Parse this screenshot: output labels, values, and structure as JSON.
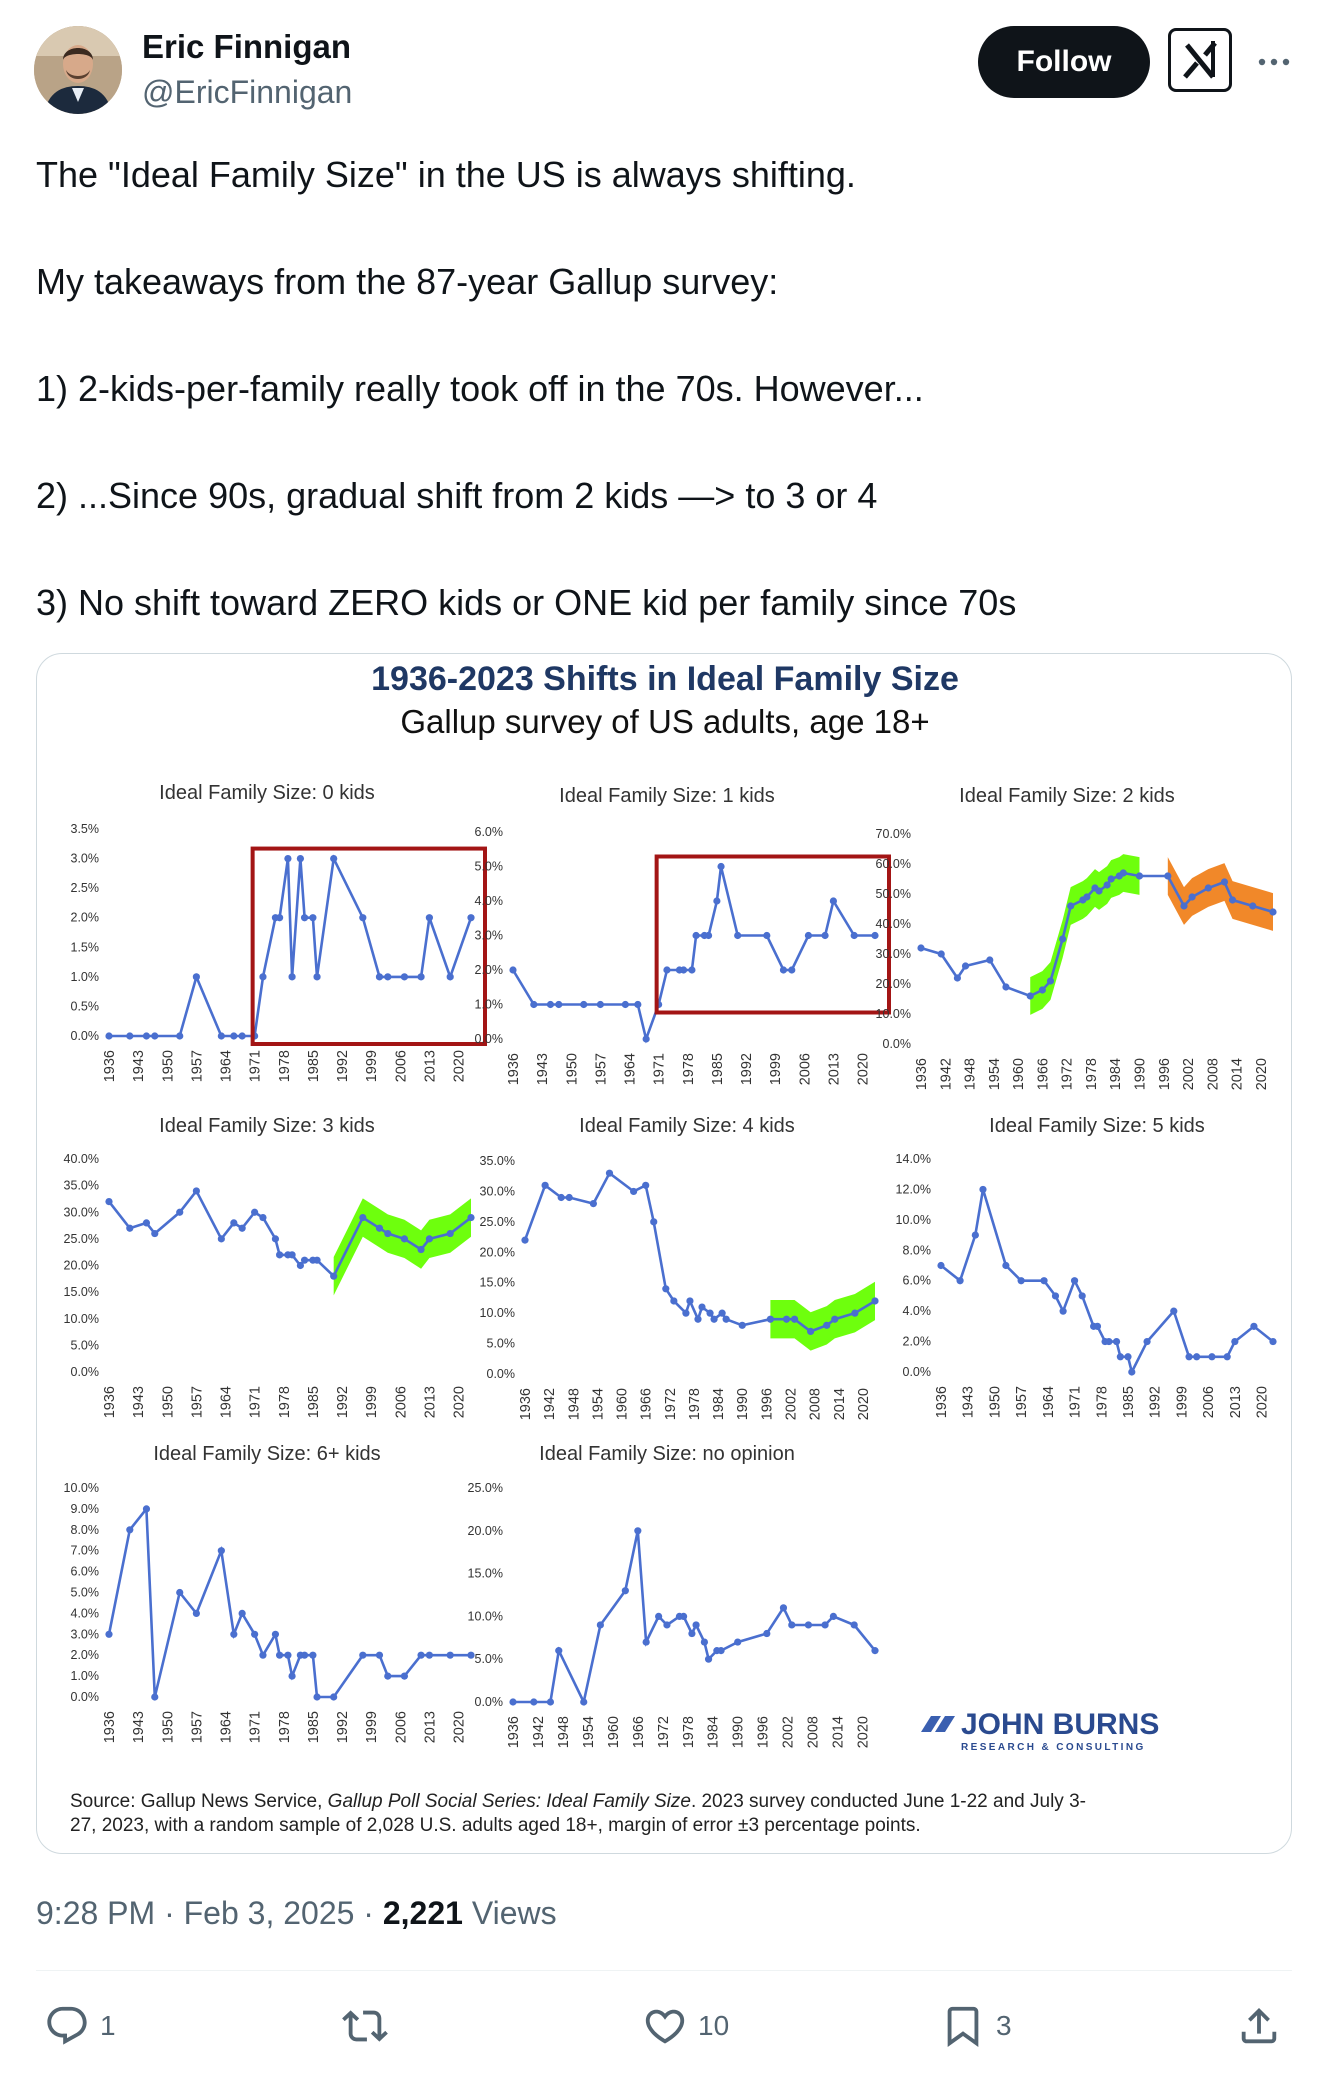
{
  "author": {
    "name": "Eric Finnigan",
    "handle": "@EricFinnigan"
  },
  "header": {
    "follow_label": "Follow",
    "grok_icon": "grok-icon",
    "more_icon": "more-icon"
  },
  "tweet": {
    "lines": [
      "The \"Ideal Family Size\" in the US is always shifting.",
      "My takeaways from the 87-year Gallup survey:",
      "1) 2-kids-per-family really took off in the 70s. However...",
      "2) ...Since 90s, gradual shift from 2 kids —> to 3 or 4",
      "3) No shift toward ZERO kids or ONE kid per family since 70s"
    ]
  },
  "media": {
    "title": "1936-2023 Shifts in Ideal Family Size",
    "subtitle": "Gallup survey of US adults, age 18+",
    "logo_text": "JOHN BURNS",
    "logo_subtext": "RESEARCH & CONSULTING",
    "source_lines": [
      [
        "Source: Gallup News Service, ",
        "Gallup Poll Social Series: Ideal Family Size",
        ". 2023 survey conducted June 1-22 and July 3-"
      ],
      [
        "27, 2023, with a random sample of 2,028 U.S. adults aged 18+, margin of error ±3 percentage points.",
        "",
        ""
      ]
    ]
  },
  "footer": {
    "time": "9:28 PM",
    "date": "Feb 3, 2025",
    "views_count": "2,221",
    "views_label": "Views"
  },
  "actions": {
    "reply_count": "1",
    "retweet_count": "",
    "like_count": "10",
    "bookmark_count": "3"
  },
  "colors": {
    "line": "#4a6fcf",
    "marker": "#4a6fcf",
    "highlight_box": "#a31515",
    "green": "#66ff00",
    "orange": "#f0821e",
    "title": "#1f3864"
  },
  "chart_data": [
    {
      "type": "line",
      "title": "Ideal Family Size: 0 kids",
      "ylim": [
        0,
        3.5
      ],
      "yticks": [
        "0.0%",
        "0.5%",
        "1.0%",
        "1.5%",
        "2.0%",
        "2.5%",
        "3.0%",
        "3.5%"
      ],
      "xticks": [
        "1936",
        "1943",
        "1950",
        "1957",
        "1964",
        "1971",
        "1978",
        "1985",
        "1992",
        "1999",
        "2006",
        "2013",
        "2020"
      ],
      "x": [
        1936,
        1941,
        1945,
        1947,
        1953,
        1957,
        1963,
        1966,
        1968,
        1971,
        1973,
        1976,
        1977,
        1979,
        1980,
        1982,
        1983,
        1985,
        1986,
        1990,
        1997,
        2001,
        2003,
        2007,
        2011,
        2013,
        2018,
        2023
      ],
      "values": [
        0,
        0,
        0,
        0,
        0,
        1,
        0,
        0,
        0,
        0,
        1,
        2,
        2,
        3,
        1,
        3,
        2,
        2,
        1,
        3,
        2,
        1,
        1,
        1,
        1,
        2,
        1,
        2
      ],
      "highlights": [
        {
          "shape": "box",
          "color": "#a31515",
          "x": [
            1971,
            2023
          ]
        }
      ]
    },
    {
      "type": "line",
      "title": "Ideal Family Size: 1 kids",
      "ylim": [
        0,
        6
      ],
      "yticks": [
        "0.0%",
        "1.0%",
        "2.0%",
        "3.0%",
        "4.0%",
        "5.0%",
        "6.0%"
      ],
      "xticks": [
        "1936",
        "1943",
        "1950",
        "1957",
        "1964",
        "1971",
        "1978",
        "1985",
        "1992",
        "1999",
        "2006",
        "2013",
        "2020"
      ],
      "x": [
        1936,
        1941,
        1945,
        1947,
        1953,
        1957,
        1963,
        1966,
        1968,
        1971,
        1973,
        1976,
        1977,
        1979,
        1980,
        1982,
        1983,
        1985,
        1986,
        1990,
        1997,
        2001,
        2003,
        2007,
        2011,
        2013,
        2018,
        2023
      ],
      "values": [
        2,
        1,
        1,
        1,
        1,
        1,
        1,
        1,
        0,
        1,
        2,
        2,
        2,
        2,
        3,
        3,
        3,
        4,
        5,
        3,
        3,
        2,
        2,
        3,
        3,
        4,
        3,
        3
      ],
      "highlights": [
        {
          "shape": "box",
          "color": "#a31515",
          "x": [
            1971,
            2023
          ]
        }
      ]
    },
    {
      "type": "line",
      "title": "Ideal Family Size: 2 kids",
      "ylim": [
        0,
        70
      ],
      "yticks": [
        "0.0%",
        "10.0%",
        "20.0%",
        "30.0%",
        "40.0%",
        "50.0%",
        "60.0%",
        "70.0%"
      ],
      "xticks": [
        "1936",
        "1942",
        "1948",
        "1954",
        "1960",
        "1966",
        "1972",
        "1978",
        "1984",
        "1990",
        "1996",
        "2002",
        "2008",
        "2014",
        "2020"
      ],
      "x": [
        1936,
        1941,
        1945,
        1947,
        1953,
        1957,
        1963,
        1966,
        1968,
        1971,
        1973,
        1976,
        1977,
        1979,
        1980,
        1982,
        1983,
        1985,
        1986,
        1990,
        1997,
        2001,
        2003,
        2007,
        2011,
        2013,
        2018,
        2023
      ],
      "values": [
        32,
        30,
        22,
        26,
        28,
        19,
        16,
        18,
        21,
        35,
        46,
        48,
        49,
        52,
        51,
        53,
        55,
        56,
        57,
        56,
        56,
        46,
        49,
        52,
        54,
        48,
        46,
        44
      ],
      "highlights": [
        {
          "shape": "band",
          "color": "#66ff00",
          "x": [
            1963,
            1993
          ]
        },
        {
          "shape": "band",
          "color": "#f0821e",
          "x": [
            1993,
            2023
          ]
        }
      ]
    },
    {
      "type": "line",
      "title": "Ideal Family Size: 3 kids",
      "ylim": [
        0,
        40
      ],
      "yticks": [
        "0.0%",
        "5.0%",
        "10.0%",
        "15.0%",
        "20.0%",
        "25.0%",
        "30.0%",
        "35.0%",
        "40.0%"
      ],
      "xticks": [
        "1936",
        "1943",
        "1950",
        "1957",
        "1964",
        "1971",
        "1978",
        "1985",
        "1992",
        "1999",
        "2006",
        "2013",
        "2020"
      ],
      "x": [
        1936,
        1941,
        1945,
        1947,
        1953,
        1957,
        1963,
        1966,
        1968,
        1971,
        1973,
        1976,
        1977,
        1979,
        1980,
        1982,
        1983,
        1985,
        1986,
        1990,
        1997,
        2001,
        2003,
        2007,
        2011,
        2013,
        2018,
        2023
      ],
      "values": [
        32,
        27,
        28,
        26,
        30,
        34,
        25,
        28,
        27,
        30,
        29,
        25,
        22,
        22,
        22,
        20,
        21,
        21,
        21,
        18,
        29,
        27,
        26,
        25,
        23,
        25,
        26,
        29
      ],
      "highlights": [
        {
          "shape": "band",
          "color": "#66ff00",
          "x": [
            1988,
            2023
          ]
        }
      ]
    },
    {
      "type": "line",
      "title": "Ideal Family Size: 4 kids",
      "ylim": [
        0,
        35
      ],
      "yticks": [
        "0.0%",
        "5.0%",
        "10.0%",
        "15.0%",
        "20.0%",
        "25.0%",
        "30.0%",
        "35.0%"
      ],
      "xticks": [
        "1936",
        "1942",
        "1948",
        "1954",
        "1960",
        "1966",
        "1972",
        "1978",
        "1984",
        "1990",
        "1996",
        "2002",
        "2008",
        "2014",
        "2020"
      ],
      "x": [
        1936,
        1941,
        1945,
        1947,
        1953,
        1957,
        1963,
        1966,
        1968,
        1971,
        1973,
        1976,
        1977,
        1979,
        1980,
        1982,
        1983,
        1985,
        1986,
        1990,
        1997,
        2001,
        2003,
        2007,
        2011,
        2013,
        2018,
        2023
      ],
      "values": [
        22,
        31,
        29,
        29,
        28,
        33,
        30,
        31,
        25,
        14,
        12,
        10,
        12,
        9,
        11,
        10,
        9,
        10,
        9,
        8,
        9,
        9,
        9,
        7,
        8,
        9,
        10,
        12
      ],
      "highlights": [
        {
          "shape": "band",
          "color": "#66ff00",
          "x": [
            1995,
            2023
          ]
        }
      ]
    },
    {
      "type": "line",
      "title": "Ideal Family Size: 5 kids",
      "ylim": [
        0,
        14
      ],
      "yticks": [
        "0.0%",
        "2.0%",
        "4.0%",
        "6.0%",
        "8.0%",
        "10.0%",
        "12.0%",
        "14.0%"
      ],
      "xticks": [
        "1936",
        "1943",
        "1950",
        "1957",
        "1964",
        "1971",
        "1978",
        "1985",
        "1992",
        "1999",
        "2006",
        "2013",
        "2020"
      ],
      "x": [
        1936,
        1941,
        1945,
        1947,
        1953,
        1957,
        1963,
        1966,
        1968,
        1971,
        1973,
        1976,
        1977,
        1979,
        1980,
        1982,
        1983,
        1985,
        1986,
        1990,
        1997,
        2001,
        2003,
        2007,
        2011,
        2013,
        2018,
        2023
      ],
      "values": [
        7,
        6,
        9,
        12,
        7,
        6,
        6,
        5,
        4,
        6,
        5,
        3,
        3,
        2,
        2,
        2,
        1,
        1,
        0,
        2,
        4,
        1,
        1,
        1,
        1,
        2,
        3,
        2
      ],
      "highlights": []
    },
    {
      "type": "line",
      "title": "Ideal Family Size: 6+ kids",
      "ylim": [
        0,
        10
      ],
      "yticks": [
        "0.0%",
        "1.0%",
        "2.0%",
        "3.0%",
        "4.0%",
        "5.0%",
        "6.0%",
        "7.0%",
        "8.0%",
        "9.0%",
        "10.0%"
      ],
      "xticks": [
        "1936",
        "1943",
        "1950",
        "1957",
        "1964",
        "1971",
        "1978",
        "1985",
        "1992",
        "1999",
        "2006",
        "2013",
        "2020"
      ],
      "x": [
        1936,
        1941,
        1945,
        1947,
        1953,
        1957,
        1963,
        1966,
        1968,
        1971,
        1973,
        1976,
        1977,
        1979,
        1980,
        1982,
        1983,
        1985,
        1986,
        1990,
        1997,
        2001,
        2003,
        2007,
        2011,
        2013,
        2018,
        2023
      ],
      "values": [
        3,
        8,
        9,
        0,
        5,
        4,
        7,
        3,
        4,
        3,
        2,
        3,
        2,
        2,
        1,
        2,
        2,
        2,
        0,
        0,
        2,
        2,
        1,
        1,
        2,
        2,
        2,
        2
      ],
      "highlights": []
    },
    {
      "type": "line",
      "title": "Ideal Family Size: no opinion",
      "ylim": [
        0,
        25
      ],
      "yticks": [
        "0.0%",
        "5.0%",
        "10.0%",
        "15.0%",
        "20.0%",
        "25.0%"
      ],
      "xticks": [
        "1936",
        "1942",
        "1948",
        "1954",
        "1960",
        "1966",
        "1972",
        "1978",
        "1984",
        "1990",
        "1996",
        "2002",
        "2008",
        "2014",
        "2020"
      ],
      "x": [
        1936,
        1941,
        1945,
        1947,
        1953,
        1957,
        1963,
        1966,
        1968,
        1971,
        1973,
        1976,
        1977,
        1979,
        1980,
        1982,
        1983,
        1985,
        1986,
        1990,
        1997,
        2001,
        2003,
        2007,
        2011,
        2013,
        2018,
        2023
      ],
      "values": [
        0,
        0,
        0,
        6,
        0,
        9,
        13,
        20,
        7,
        10,
        9,
        10,
        10,
        8,
        9,
        7,
        5,
        6,
        6,
        7,
        8,
        11,
        9,
        9,
        9,
        10,
        9,
        6
      ],
      "highlights": []
    }
  ]
}
